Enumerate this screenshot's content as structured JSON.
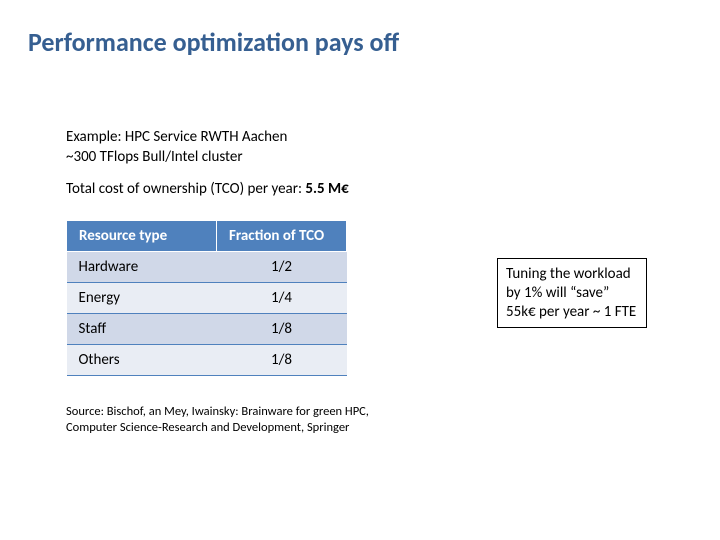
{
  "title": "Performance optimization pays off",
  "example": {
    "line1": "Example: HPC Service RWTH Aachen",
    "line2": "~300 TFlops Bull/Intel cluster"
  },
  "tco": {
    "prefix": "Total cost of ownership (TCO) per year: ",
    "value": "5.5 M€"
  },
  "table": {
    "header_type": "Resource type",
    "header_frac": "Fraction of TCO",
    "rows": [
      {
        "type": "Hardware",
        "frac": "1/2"
      },
      {
        "type": "Energy",
        "frac": "1/4"
      },
      {
        "type": "Staff",
        "frac": "1/8"
      },
      {
        "type": "Others",
        "frac": "1/8"
      }
    ]
  },
  "callout": "Tuning the workload by 1% will “save” 55k€ per year ~ 1 FTE",
  "source": "Source: Bischof, an Mey, Iwainsky: Brainware for green HPC,  Computer Science-Research and Development, Springer"
}
